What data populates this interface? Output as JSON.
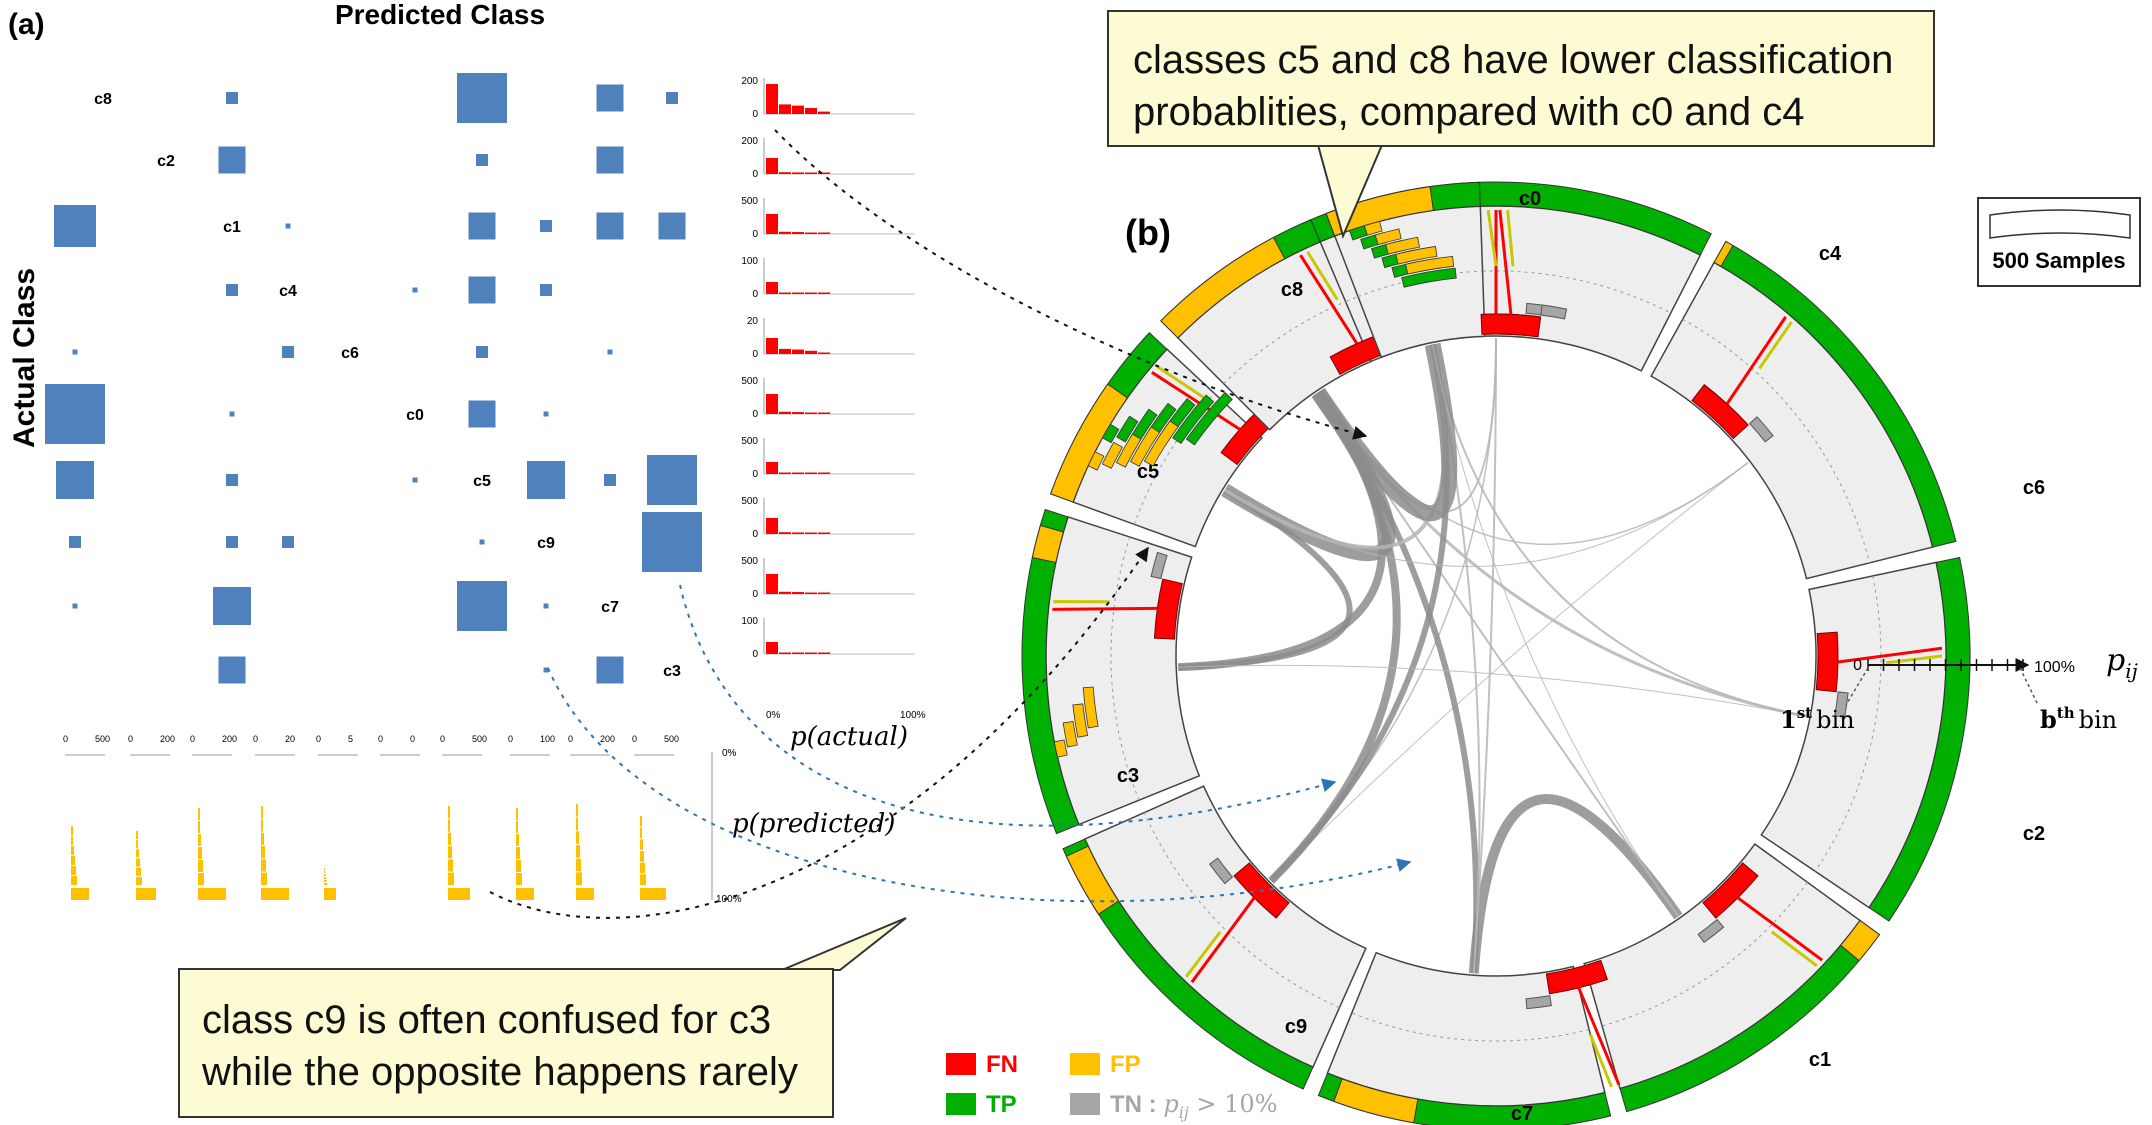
{
  "panel_a": {
    "label": "(a)",
    "top_title": "Predicted Class",
    "side_title": "Actual Class",
    "diag_labels": [
      "c8",
      "c2",
      "c1",
      "c4",
      "c6",
      "c0",
      "c5",
      "c9",
      "c7",
      "c3"
    ],
    "bar_color": "#4f81bd",
    "actual_hist_color": "#ff0000",
    "predicted_hist_color": "#ffc000",
    "matrix_cells": [
      [
        0,
        2,
        "s"
      ],
      [
        0,
        6,
        "xl"
      ],
      [
        0,
        8,
        "m"
      ],
      [
        0,
        9,
        "s"
      ],
      [
        1,
        2,
        "m"
      ],
      [
        1,
        6,
        "s"
      ],
      [
        1,
        8,
        "m"
      ],
      [
        2,
        0,
        "l"
      ],
      [
        2,
        3,
        "xs"
      ],
      [
        2,
        6,
        "m"
      ],
      [
        2,
        7,
        "s"
      ],
      [
        2,
        8,
        "m"
      ],
      [
        2,
        9,
        "m"
      ],
      [
        3,
        2,
        "s"
      ],
      [
        3,
        5,
        "xs"
      ],
      [
        3,
        6,
        "m"
      ],
      [
        3,
        7,
        "s"
      ],
      [
        4,
        0,
        "xs"
      ],
      [
        4,
        3,
        "s"
      ],
      [
        4,
        6,
        "s"
      ],
      [
        4,
        8,
        "xs"
      ],
      [
        5,
        0,
        "xxl"
      ],
      [
        5,
        2,
        "xs"
      ],
      [
        5,
        6,
        "m"
      ],
      [
        5,
        7,
        "xs"
      ],
      [
        6,
        0,
        "ml"
      ],
      [
        6,
        2,
        "s"
      ],
      [
        6,
        5,
        "xs"
      ],
      [
        6,
        7,
        "ml"
      ],
      [
        6,
        8,
        "s"
      ],
      [
        6,
        9,
        "xl"
      ],
      [
        7,
        0,
        "s"
      ],
      [
        7,
        2,
        "s"
      ],
      [
        7,
        3,
        "s"
      ],
      [
        7,
        6,
        "xs"
      ],
      [
        7,
        9,
        "xxl"
      ],
      [
        8,
        0,
        "xs"
      ],
      [
        8,
        2,
        "ml"
      ],
      [
        8,
        6,
        "xl"
      ],
      [
        8,
        7,
        "xs"
      ],
      [
        9,
        2,
        "m"
      ],
      [
        9,
        7,
        "xs"
      ],
      [
        9,
        8,
        "m"
      ]
    ],
    "actual_axis_max": [
      "200",
      "200",
      "500",
      "100",
      "20",
      "500",
      "500",
      "500",
      "500",
      "100"
    ],
    "actual_axis_x": [
      "0%",
      "100%"
    ],
    "actual_label": "p(actual)",
    "predicted_axis_ticks": [
      [
        "0",
        "500"
      ],
      [
        "0",
        "200"
      ],
      [
        "0",
        "200"
      ],
      [
        "0",
        "20"
      ],
      [
        "0",
        "5"
      ],
      [
        "0",
        "0"
      ],
      [
        "0",
        "500"
      ],
      [
        "0",
        "100"
      ],
      [
        "0",
        "200"
      ],
      [
        "0",
        "500"
      ]
    ],
    "predicted_axis_y": [
      "0%",
      "100%"
    ],
    "predicted_label": "p(predicted)"
  },
  "panel_b": {
    "label": "(b)",
    "classes": [
      "c0",
      "c4",
      "c6",
      "c2",
      "c1",
      "c7",
      "c9",
      "c3",
      "c5",
      "c8"
    ],
    "scale_label": "500 Samples",
    "pij_axis": {
      "start": "0",
      "end": "100%",
      "symbol": "p",
      "sub": "ij"
    },
    "first_bin": {
      "num": "1",
      "sup": "st",
      "word": "bin"
    },
    "last_bin": {
      "num": "b",
      "sup": "th",
      "word": "bin"
    },
    "colors": {
      "TP": "#00b000",
      "FP": "#ffc000",
      "FN": "#ff0000",
      "TN": "#a6a6a6",
      "ring_bg": "#eeeeee"
    }
  },
  "callouts": {
    "top": "classes c5 and c8 have lower classification probablities, compared with c0 and c4",
    "bottom": "class c9 is often confused for c3 while the opposite happens rarely"
  },
  "legend": {
    "fn": "FN",
    "fp": "FP",
    "tp": "TP",
    "tn": "TN : ",
    "tn_cond": "p",
    "tn_sub": "ij",
    "tn_rest": " > 10%"
  }
}
